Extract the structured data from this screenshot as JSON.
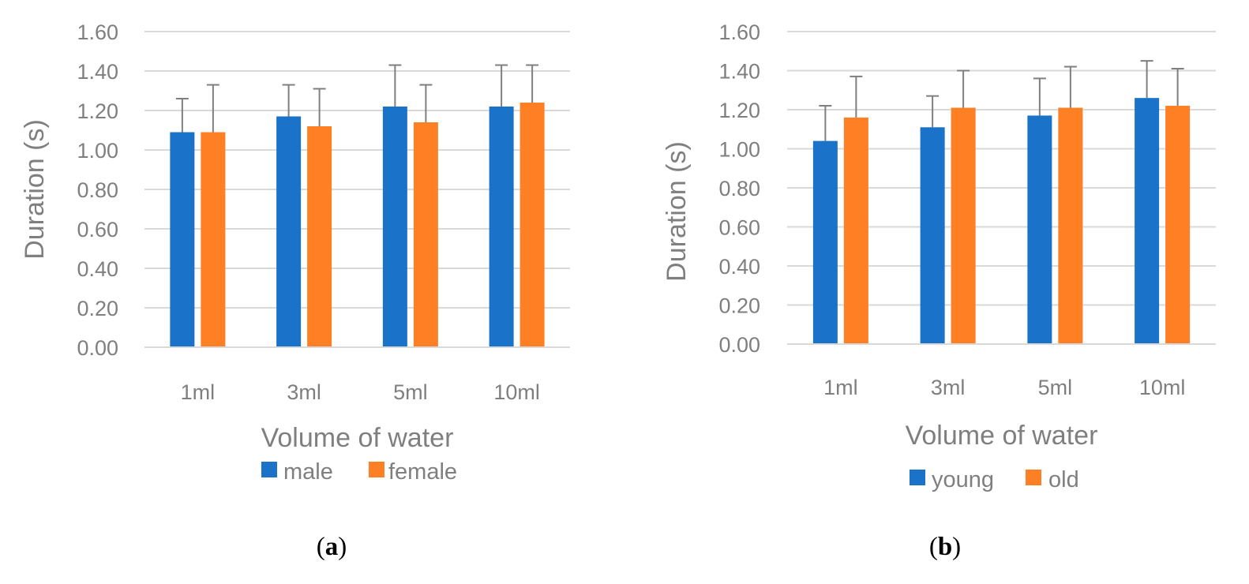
{
  "colors": {
    "series1": "#1a72c9",
    "series2": "#ff7f24",
    "text": "#7f7f7f",
    "grid": "#d9d9d9"
  },
  "chart_data": [
    {
      "type": "bar",
      "panel": "a",
      "panel_label_open": "(",
      "panel_label_letter": "a",
      "panel_label_close": ")",
      "categories": [
        "1ml",
        "3ml",
        "5ml",
        "10ml"
      ],
      "series": [
        {
          "name": "male",
          "values": [
            1.09,
            1.17,
            1.22,
            1.22
          ],
          "errors": [
            0.17,
            0.16,
            0.21,
            0.21
          ]
        },
        {
          "name": "female",
          "values": [
            1.09,
            1.12,
            1.14,
            1.24
          ],
          "errors": [
            0.24,
            0.19,
            0.19,
            0.19
          ]
        }
      ],
      "xlabel": "Volume of water",
      "ylabel": "Duration (s)",
      "ylim": [
        0,
        1.6
      ],
      "yticks": [
        "0.00",
        "0.20",
        "0.40",
        "0.60",
        "0.80",
        "1.00",
        "1.20",
        "1.40",
        "1.60"
      ],
      "grid": true,
      "legend": "bottom"
    },
    {
      "type": "bar",
      "panel": "b",
      "panel_label_open": "(",
      "panel_label_letter": "b",
      "panel_label_close": ")",
      "categories": [
        "1ml",
        "3ml",
        "5ml",
        "10ml"
      ],
      "series": [
        {
          "name": "young",
          "values": [
            1.04,
            1.11,
            1.17,
            1.26
          ],
          "errors": [
            0.18,
            0.16,
            0.19,
            0.19
          ]
        },
        {
          "name": "old",
          "values": [
            1.16,
            1.21,
            1.21,
            1.22
          ],
          "errors": [
            0.21,
            0.19,
            0.21,
            0.19
          ]
        }
      ],
      "xlabel": "Volume of water",
      "ylabel": "Duration (s)",
      "ylim": [
        0,
        1.6
      ],
      "yticks": [
        "0.00",
        "0.20",
        "0.40",
        "0.60",
        "0.80",
        "1.00",
        "1.20",
        "1.40",
        "1.60"
      ],
      "grid": true,
      "legend": "bottom"
    }
  ]
}
